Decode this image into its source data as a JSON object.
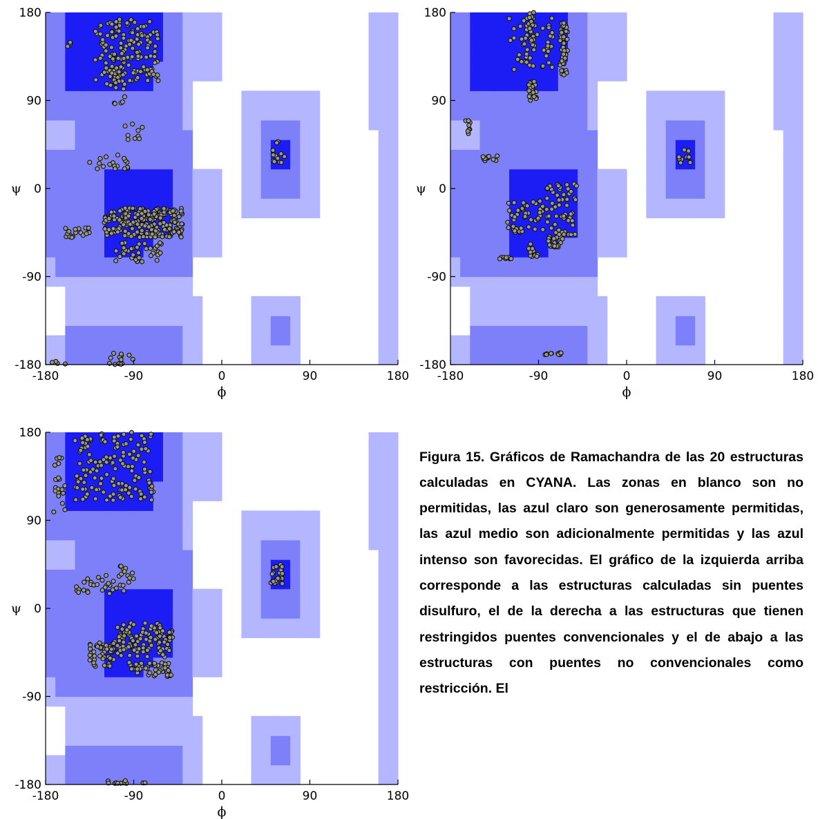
{
  "colors": {
    "white": "#ffffff",
    "generous": "#b4b7ff",
    "additional": "#7d80f9",
    "favored": "#1c1cf5",
    "point_fill": "#9a9a88",
    "point_stroke": "#111111"
  },
  "axes": {
    "xlabel": "ϕ",
    "ylabel": "ψ",
    "xlim": [
      -180,
      180
    ],
    "ylim": [
      -180,
      180
    ],
    "xticks": [
      "-180",
      "-90",
      "0",
      "90",
      "180"
    ],
    "yticks": [
      "180",
      "90",
      "0",
      "-90",
      "-180"
    ]
  },
  "caption": "Figura 15. Gráficos de Ramachandra de las 20 estructuras calculadas en CYANA. Las zonas en blanco son no permitidas, las azul claro son generosamente permitidas, las azul medio son adicionalmente permitidas y las azul intenso son favorecidas. El gráfico de la izquierda arriba corresponde a las estructuras calculadas sin puentes disulfuro, el de la derecha a las estructuras que tienen restringidos puentes convencionales y el de abajo a las estructuras con puentes no convencionales como restricción. El",
  "chart_data": [
    {
      "type": "scatter",
      "name": "",
      "xlabel": "ϕ",
      "ylabel": "ψ",
      "xlim": [
        -180,
        180
      ],
      "ylim": [
        -180,
        180
      ],
      "clusters": [
        {
          "phi": [
            -130,
            -65
          ],
          "psi": [
            110,
            175
          ],
          "n": 150
        },
        {
          "phi": [
            -118,
            -98
          ],
          "psi": [
            85,
            125
          ],
          "n": 25
        },
        {
          "phi": [
            -165,
            -150
          ],
          "psi": [
            145,
            155
          ],
          "n": 3
        },
        {
          "phi": [
            -105,
            -80
          ],
          "psi": [
            50,
            70
          ],
          "n": 10
        },
        {
          "phi": [
            -135,
            -95
          ],
          "psi": [
            20,
            35
          ],
          "n": 18
        },
        {
          "phi": [
            -120,
            -40
          ],
          "psi": [
            -50,
            -20
          ],
          "n": 220
        },
        {
          "phi": [
            -110,
            -60
          ],
          "psi": [
            -75,
            -55
          ],
          "n": 35
        },
        {
          "phi": [
            -160,
            -135
          ],
          "psi": [
            -50,
            -38
          ],
          "n": 18
        },
        {
          "phi": [
            52,
            65
          ],
          "psi": [
            25,
            50
          ],
          "n": 12
        },
        {
          "phi": [
            -175,
            -155
          ],
          "psi": [
            -180,
            -176
          ],
          "n": 4
        },
        {
          "phi": [
            -115,
            -90
          ],
          "psi": [
            -180,
            -168
          ],
          "n": 14
        }
      ]
    },
    {
      "type": "scatter",
      "name": "",
      "xlabel": "ϕ",
      "ylabel": "ψ",
      "xlim": [
        -180,
        180
      ],
      "ylim": [
        -180,
        180
      ],
      "clusters": [
        {
          "phi": [
            -120,
            -75
          ],
          "psi": [
            120,
            175
          ],
          "n": 50
        },
        {
          "phi": [
            -100,
            -95
          ],
          "psi": [
            150,
            180
          ],
          "n": 20
        },
        {
          "phi": [
            -68,
            -60
          ],
          "psi": [
            115,
            170
          ],
          "n": 45
        },
        {
          "phi": [
            -100,
            -92
          ],
          "psi": [
            90,
            110
          ],
          "n": 25
        },
        {
          "phi": [
            -165,
            -160
          ],
          "psi": [
            55,
            70
          ],
          "n": 8
        },
        {
          "phi": [
            -148,
            -130
          ],
          "psi": [
            28,
            34
          ],
          "n": 12
        },
        {
          "phi": [
            -122,
            -80
          ],
          "psi": [
            -45,
            -10
          ],
          "n": 45
        },
        {
          "phi": [
            -82,
            -50
          ],
          "psi": [
            -50,
            5
          ],
          "n": 60
        },
        {
          "phi": [
            -80,
            -65
          ],
          "psi": [
            -60,
            -50
          ],
          "n": 20
        },
        {
          "phi": [
            -100,
            -90
          ],
          "psi": [
            -70,
            -55
          ],
          "n": 12
        },
        {
          "phi": [
            -130,
            -118
          ],
          "psi": [
            -72,
            -70
          ],
          "n": 8
        },
        {
          "phi": [
            52,
            65
          ],
          "psi": [
            25,
            40
          ],
          "n": 10
        },
        {
          "phi": [
            -85,
            -65
          ],
          "psi": [
            -170,
            -168
          ],
          "n": 12
        }
      ]
    },
    {
      "type": "scatter",
      "name": "",
      "xlabel": "ϕ",
      "ylabel": "ψ",
      "xlim": [
        -180,
        180
      ],
      "ylim": [
        -180,
        180
      ],
      "clusters": [
        {
          "phi": [
            -150,
            -70
          ],
          "psi": [
            110,
            180
          ],
          "n": 140
        },
        {
          "phi": [
            -172,
            -160
          ],
          "psi": [
            95,
            155
          ],
          "n": 20
        },
        {
          "phi": [
            -150,
            -95
          ],
          "psi": [
            15,
            35
          ],
          "n": 30
        },
        {
          "phi": [
            -105,
            -90
          ],
          "psi": [
            30,
            45
          ],
          "n": 10
        },
        {
          "phi": [
            -110,
            -50
          ],
          "psi": [
            -50,
            -15
          ],
          "n": 110
        },
        {
          "phi": [
            -135,
            -110
          ],
          "psi": [
            -60,
            -35
          ],
          "n": 45
        },
        {
          "phi": [
            -95,
            -50
          ],
          "psi": [
            -70,
            -55
          ],
          "n": 45
        },
        {
          "phi": [
            50,
            62
          ],
          "psi": [
            25,
            45
          ],
          "n": 25
        },
        {
          "phi": [
            -135,
            -75
          ],
          "psi": [
            -180,
            -176
          ],
          "n": 12
        }
      ]
    }
  ]
}
